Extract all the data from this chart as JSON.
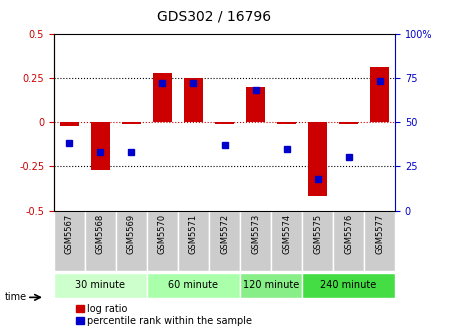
{
  "title": "GDS302 / 16796",
  "samples": [
    "GSM5567",
    "GSM5568",
    "GSM5569",
    "GSM5570",
    "GSM5571",
    "GSM5572",
    "GSM5573",
    "GSM5574",
    "GSM5575",
    "GSM5576",
    "GSM5577"
  ],
  "log_ratio": [
    -0.02,
    -0.27,
    -0.01,
    0.28,
    0.25,
    -0.01,
    0.2,
    -0.01,
    -0.42,
    -0.01,
    0.31
  ],
  "percentile": [
    38,
    33,
    33,
    72,
    72,
    37,
    68,
    35,
    18,
    30,
    73
  ],
  "groups": [
    {
      "label": "30 minute",
      "start": 0,
      "end": 3,
      "color": "#ccffcc"
    },
    {
      "label": "60 minute",
      "start": 3,
      "end": 6,
      "color": "#aaffaa"
    },
    {
      "label": "120 minute",
      "start": 6,
      "end": 8,
      "color": "#88ee88"
    },
    {
      "label": "240 minute",
      "start": 8,
      "end": 11,
      "color": "#44dd44"
    }
  ],
  "bar_color": "#cc0000",
  "dot_color": "#0000cc",
  "left_ylim": [
    -0.5,
    0.5
  ],
  "right_ylim": [
    0,
    100
  ],
  "left_yticks": [
    -0.5,
    -0.25,
    0,
    0.25,
    0.5
  ],
  "right_yticks": [
    0,
    25,
    50,
    75,
    100
  ],
  "left_yticklabels": [
    "-0.5",
    "-0.25",
    "0",
    "0.25",
    "0.5"
  ],
  "right_yticklabels": [
    "0",
    "25",
    "50",
    "75",
    "100%"
  ],
  "bar_width": 0.6,
  "xlabel_color": "#cc0000",
  "ylabel_right_color": "#0000cc",
  "legend_log_ratio": "log ratio",
  "legend_percentile": "percentile rank within the sample",
  "time_label": "time",
  "bg_color": "#ffffff"
}
